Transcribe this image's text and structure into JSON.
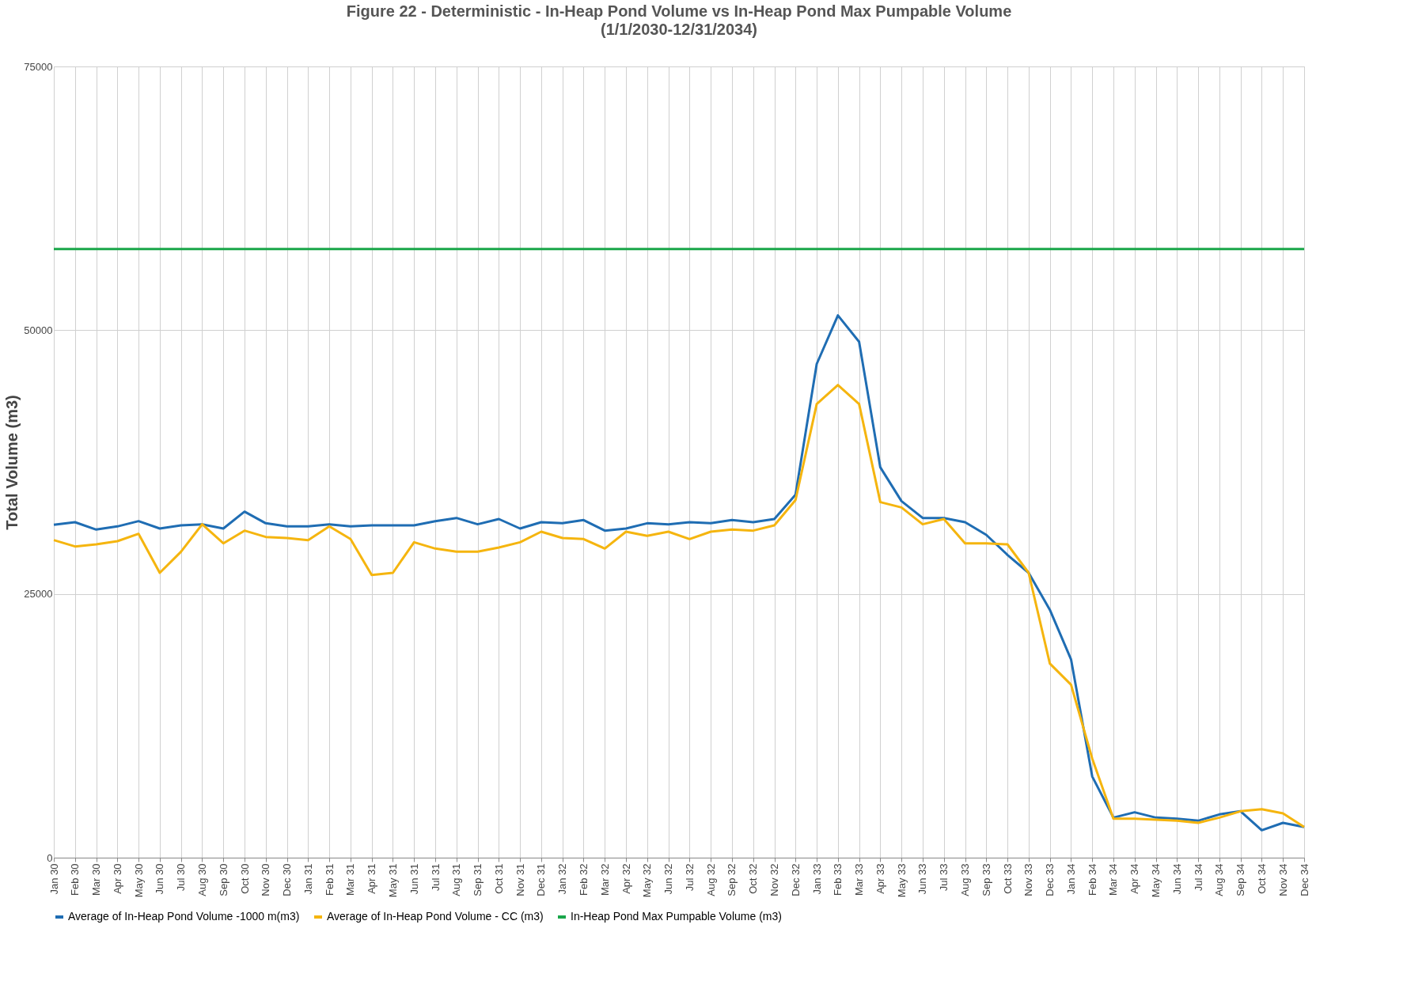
{
  "chart_data": {
    "type": "line",
    "title": "Figure 22 - Deterministic - In-Heap Pond Volume vs In-Heap Pond Max Pumpable Volume",
    "subtitle": "(1/1/2030-12/31/2034)",
    "ylabel": "Total Volume (m3)",
    "categories": [
      "Jan 30",
      "Feb 30",
      "Mar 30",
      "Apr 30",
      "May 30",
      "Jun 30",
      "Jul 30",
      "Aug 30",
      "Sep 30",
      "Oct 30",
      "Nov 30",
      "Dec 30",
      "Jan 31",
      "Feb 31",
      "Mar 31",
      "Apr 31",
      "May 31",
      "Jun 31",
      "Jul 31",
      "Aug 31",
      "Sep 31",
      "Oct 31",
      "Nov 31",
      "Dec 31",
      "Jan 32",
      "Feb 32",
      "Mar 32",
      "Apr 32",
      "May 32",
      "Jun 32",
      "Jul 32",
      "Aug 32",
      "Sep 32",
      "Oct 32",
      "Nov 32",
      "Dec 32",
      "Jan 33",
      "Feb 33",
      "Mar 33",
      "Apr 33",
      "May 33",
      "Jun 33",
      "Jul 33",
      "Aug 33",
      "Sep 33",
      "Oct 33",
      "Nov 33",
      "Dec 33",
      "Jan 34",
      "Feb 34",
      "Mar 34",
      "Apr 34",
      "May 34",
      "Jun 34",
      "Jul 34",
      "Aug 34",
      "Sep 34",
      "Oct 34",
      "Nov 34",
      "Dec 34"
    ],
    "series": [
      {
        "name": "Average of In-Heap Pond Volume -1000 m(m3)",
        "color": "#1f6db3",
        "values": [
          31550,
          31800,
          31100,
          31400,
          31900,
          31200,
          31500,
          31600,
          31200,
          32800,
          31700,
          31400,
          31400,
          31600,
          31400,
          31500,
          31500,
          31500,
          31900,
          32200,
          31600,
          32100,
          31200,
          31800,
          31700,
          32000,
          31000,
          31200,
          31700,
          31600,
          31800,
          31700,
          32000,
          31800,
          32100,
          34400,
          46800,
          51400,
          48900,
          37000,
          33800,
          32200,
          32200,
          31800,
          30600,
          28700,
          27000,
          23500,
          18800,
          7700,
          3800,
          4300,
          3800,
          3700,
          3500,
          4100,
          4400,
          2600,
          3300,
          2900
        ]
      },
      {
        "name": "Average of In-Heap Pond Volume - CC (m3)",
        "color": "#f5b50f",
        "values": [
          30100,
          29500,
          29700,
          30000,
          30700,
          27000,
          29000,
          31600,
          29800,
          31000,
          30400,
          30300,
          30100,
          31400,
          30200,
          26800,
          27000,
          29900,
          29300,
          29000,
          29000,
          29400,
          29900,
          30900,
          30300,
          30200,
          29300,
          30900,
          30500,
          30900,
          30200,
          30900,
          31100,
          31000,
          31500,
          33900,
          43000,
          44800,
          43000,
          33700,
          33200,
          31600,
          32100,
          29800,
          29800,
          29700,
          27000,
          18400,
          16400,
          9400,
          3700,
          3700,
          3600,
          3500,
          3300,
          3800,
          4400,
          4600,
          4200,
          2900
        ]
      },
      {
        "name": "In-Heap Pond Max Pumpable Volume (m3)",
        "color": "#1aa64a",
        "values": [
          57700,
          57700,
          57700,
          57700,
          57700,
          57700,
          57700,
          57700,
          57700,
          57700,
          57700,
          57700,
          57700,
          57700,
          57700,
          57700,
          57700,
          57700,
          57700,
          57700,
          57700,
          57700,
          57700,
          57700,
          57700,
          57700,
          57700,
          57700,
          57700,
          57700,
          57700,
          57700,
          57700,
          57700,
          57700,
          57700,
          57700,
          57700,
          57700,
          57700,
          57700,
          57700,
          57700,
          57700,
          57700,
          57700,
          57700,
          57700,
          57700,
          57700,
          57700,
          57700,
          57700,
          57700,
          57700,
          57700,
          57700,
          57700,
          57700,
          57700
        ]
      }
    ],
    "ylim": [
      0,
      75000
    ],
    "yticks": [
      0,
      25000,
      50000,
      75000
    ],
    "grid": true,
    "legend": "bottom",
    "marker": "none",
    "line_style": "solid"
  }
}
